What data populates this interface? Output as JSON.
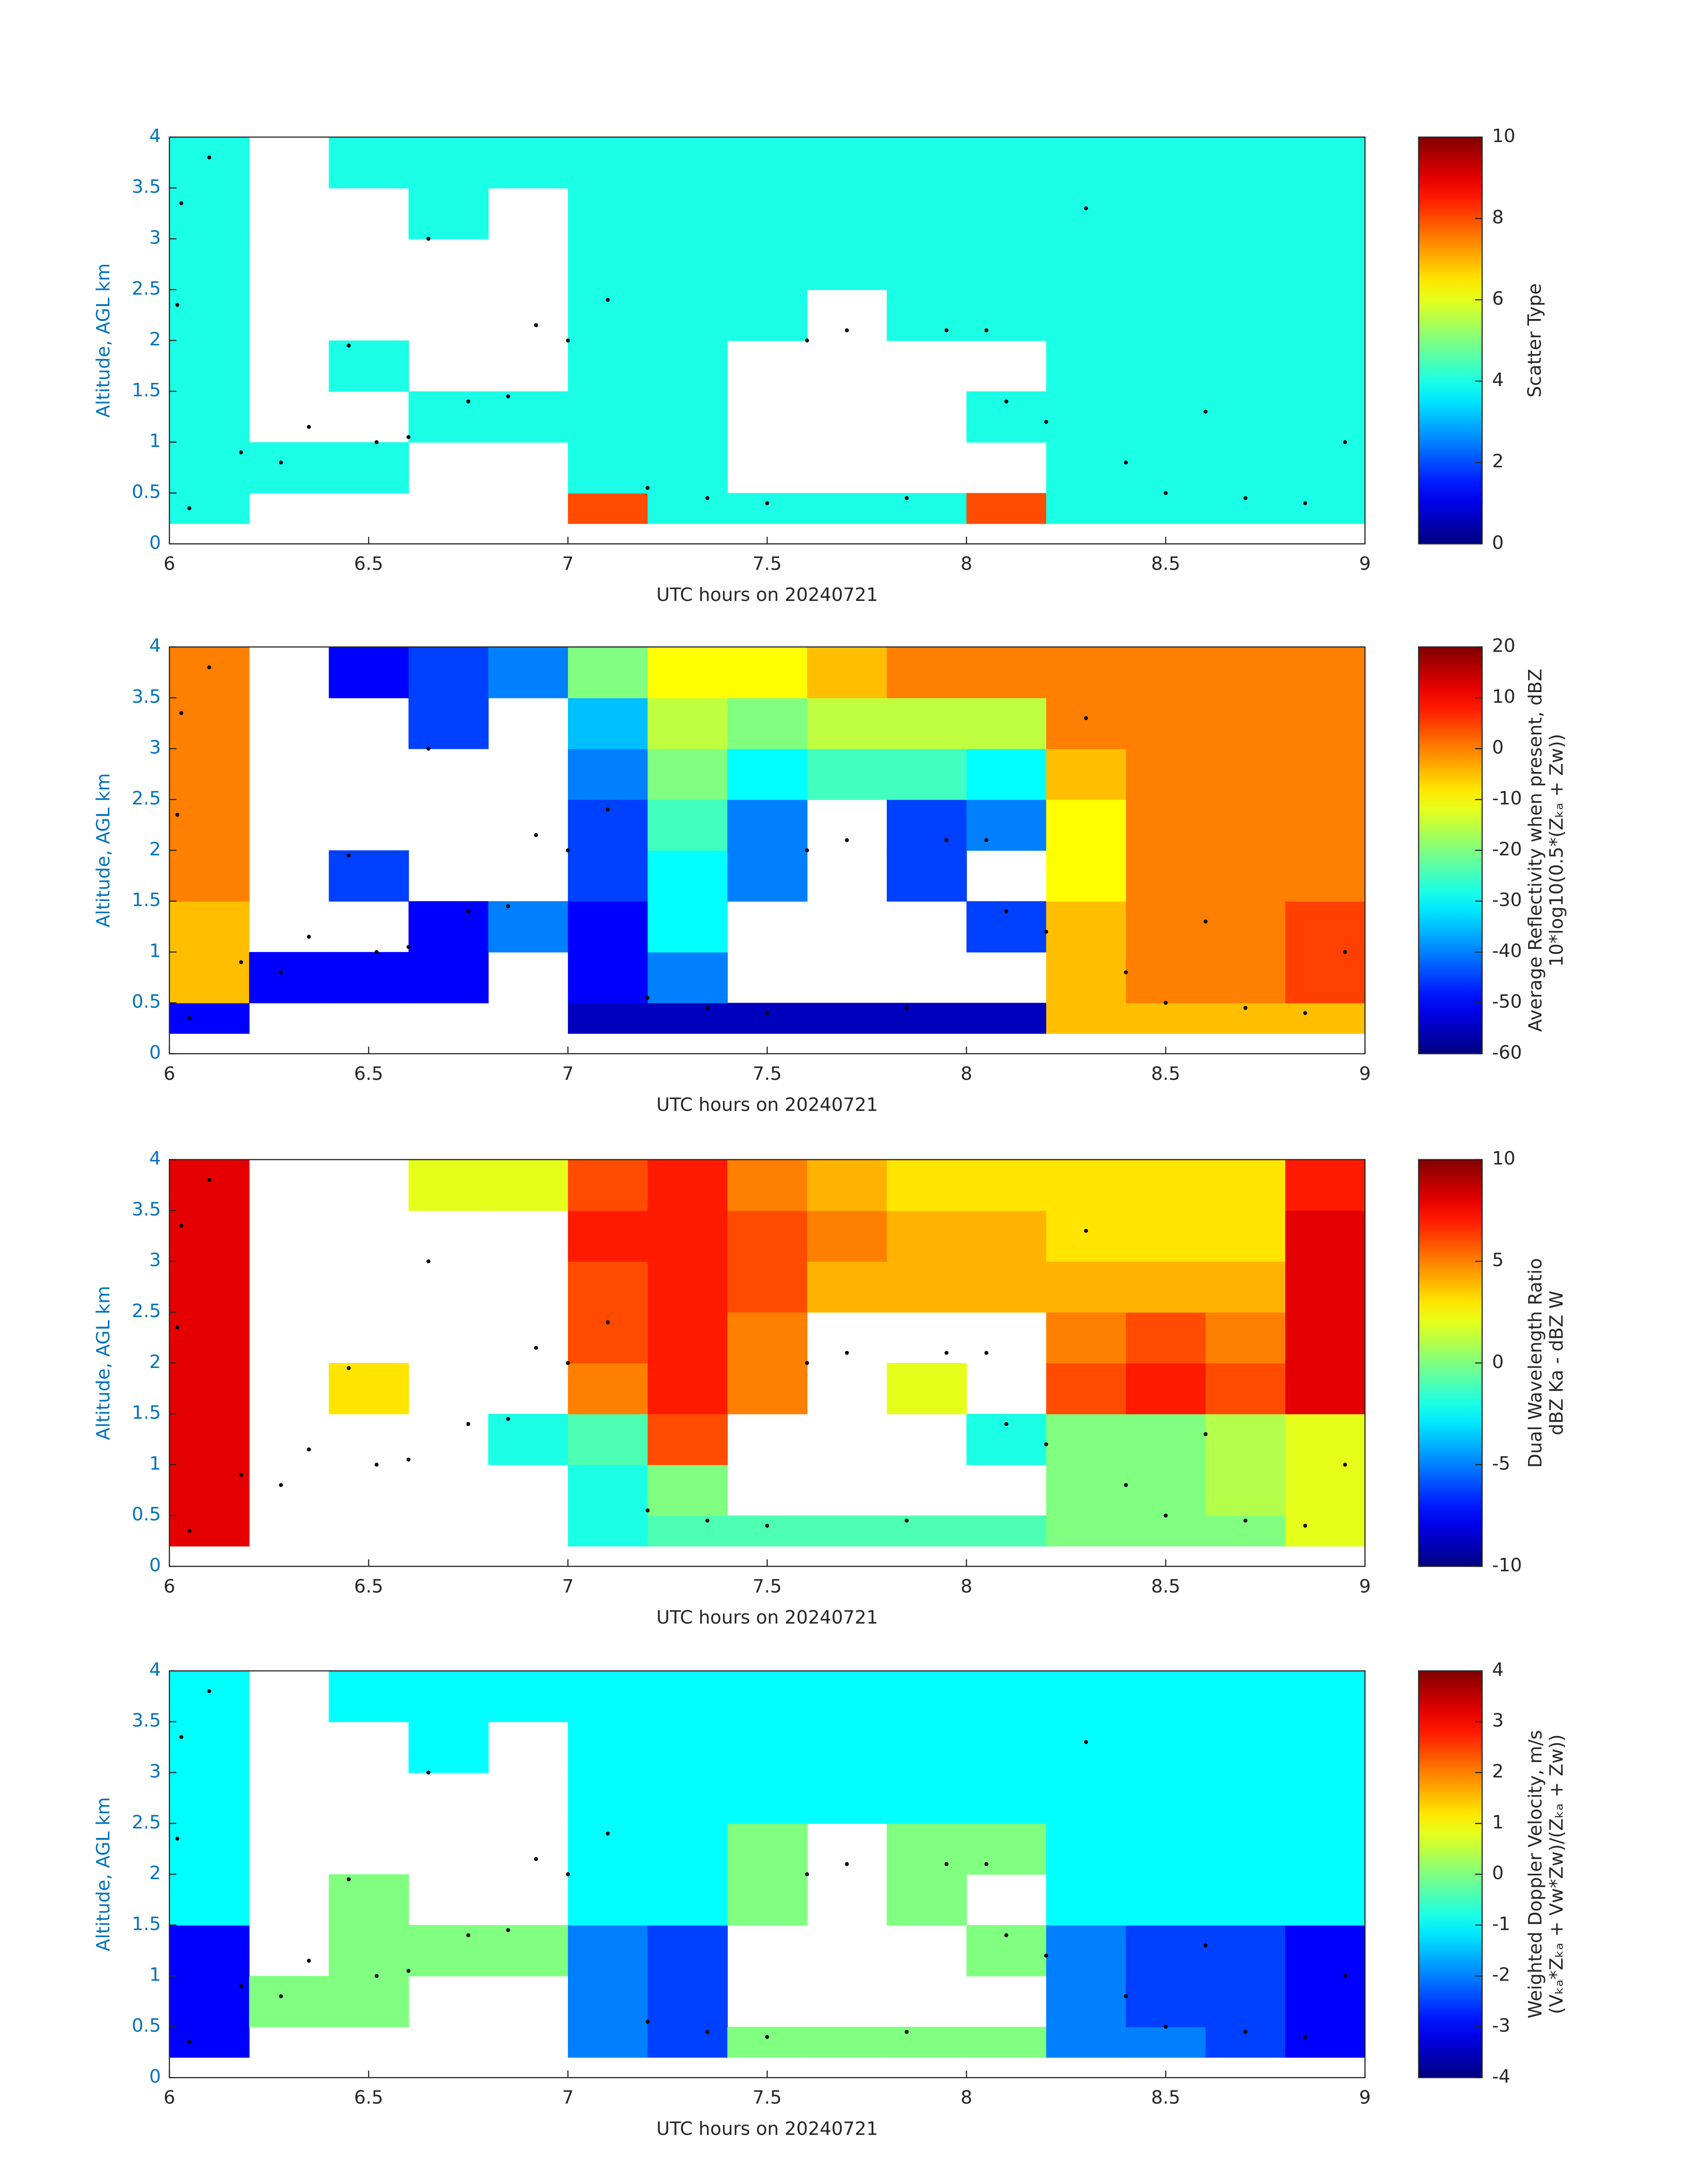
{
  "chart_data": [
    {
      "type": "heatmap",
      "colormap": "jet",
      "xlabel": "UTC hours on 20240721",
      "ylabel": "Altitude, AGL km",
      "xlim": [
        6,
        9
      ],
      "xticks": [
        6,
        6.5,
        7,
        7.5,
        8,
        8.5,
        9
      ],
      "ylim": [
        0,
        4
      ],
      "yticks": [
        0,
        0.5,
        1,
        1.5,
        2,
        2.5,
        3,
        3.5,
        4
      ],
      "clim": [
        0,
        10
      ],
      "cticks": [
        0,
        2,
        4,
        6,
        8,
        10
      ],
      "colorbar_label": [
        "Scatter Type"
      ],
      "x_edges": [
        6,
        6.2,
        6.4,
        6.6,
        6.8,
        7,
        7.2,
        7.4,
        7.6,
        7.8,
        8,
        8.2,
        8.4,
        8.6,
        8.8,
        9
      ],
      "y_edges": [
        0.2,
        0.5,
        1,
        1.5,
        2,
        2.5,
        3,
        3.5,
        4
      ],
      "z": [
        [
          4,
          null,
          null,
          null,
          null,
          8,
          4,
          4,
          4,
          4,
          8,
          4,
          4,
          4,
          4
        ],
        [
          4,
          4,
          4,
          null,
          null,
          4,
          4,
          null,
          null,
          null,
          null,
          4,
          4,
          4,
          4
        ],
        [
          4,
          null,
          null,
          4,
          4,
          4,
          4,
          null,
          null,
          null,
          4,
          4,
          4,
          4,
          4
        ],
        [
          4,
          null,
          4,
          null,
          null,
          4,
          4,
          null,
          null,
          null,
          null,
          4,
          4,
          4,
          4
        ],
        [
          4,
          null,
          null,
          null,
          null,
          4,
          4,
          4,
          null,
          4,
          4,
          4,
          4,
          4,
          4
        ],
        [
          4,
          null,
          null,
          null,
          null,
          4,
          4,
          4,
          4,
          4,
          4,
          4,
          4,
          4,
          4
        ],
        [
          4,
          null,
          null,
          4,
          null,
          4,
          4,
          4,
          4,
          4,
          4,
          4,
          4,
          4,
          4
        ],
        [
          4,
          null,
          4,
          4,
          4,
          4,
          4,
          4,
          4,
          4,
          4,
          4,
          4,
          4,
          4
        ]
      ],
      "dots": {
        "x": [
          6.02,
          6.03,
          6.1,
          6.05,
          6.18,
          6.28,
          6.35,
          6.45,
          6.52,
          6.6,
          6.65,
          6.75,
          6.85,
          6.92,
          7.0,
          7.1,
          7.2,
          7.35,
          7.5,
          7.6,
          7.7,
          7.85,
          7.95,
          8.05,
          8.1,
          8.2,
          8.3,
          8.4,
          8.5,
          8.6,
          8.7,
          8.85,
          8.95
        ],
        "values": [
          2.35,
          3.35,
          3.8,
          0.35,
          0.9,
          0.8,
          1.15,
          1.95,
          1.0,
          1.05,
          3.0,
          1.4,
          1.45,
          2.15,
          2.0,
          2.4,
          0.55,
          0.45,
          0.4,
          2.0,
          2.1,
          0.45,
          2.1,
          2.1,
          1.4,
          1.2,
          3.3,
          0.8,
          0.5,
          1.3,
          0.45,
          0.4,
          1.0
        ]
      }
    },
    {
      "type": "heatmap",
      "colormap": "jet",
      "xlabel": "UTC hours on 20240721",
      "ylabel": "Altitude, AGL km",
      "xlim": [
        6,
        9
      ],
      "xticks": [
        6,
        6.5,
        7,
        7.5,
        8,
        8.5,
        9
      ],
      "ylim": [
        0,
        4
      ],
      "yticks": [
        0,
        0.5,
        1,
        1.5,
        2,
        2.5,
        3,
        3.5,
        4
      ],
      "clim": [
        -60,
        20
      ],
      "cticks": [
        -60,
        -50,
        -40,
        -30,
        -20,
        -10,
        0,
        10,
        20
      ],
      "colorbar_label": [
        "Average Reflectivity when present, dBZ",
        "10*log10(0.5*(Zₖₐ + Zw))"
      ],
      "x_edges": [
        6,
        6.2,
        6.4,
        6.6,
        6.8,
        7,
        7.2,
        7.4,
        7.6,
        7.8,
        8,
        8.2,
        8.4,
        8.6,
        8.8,
        9
      ],
      "y_edges": [
        0.2,
        0.5,
        1,
        1.5,
        2,
        2.5,
        3,
        3.5,
        4
      ],
      "z": [
        [
          -50,
          null,
          null,
          null,
          null,
          -55,
          -55,
          -55,
          -55,
          -55,
          -55,
          -5,
          -5,
          -5,
          -5
        ],
        [
          -5,
          -50,
          -50,
          -50,
          null,
          -50,
          -40,
          null,
          null,
          null,
          null,
          -5,
          0,
          0,
          5
        ],
        [
          -5,
          null,
          null,
          -50,
          -40,
          -50,
          -30,
          null,
          null,
          null,
          -45,
          -5,
          0,
          0,
          5
        ],
        [
          0,
          null,
          -45,
          null,
          null,
          -45,
          -30,
          -40,
          null,
          -45,
          null,
          -10,
          0,
          0,
          0
        ],
        [
          0,
          null,
          null,
          null,
          null,
          -45,
          -25,
          -40,
          null,
          -45,
          -40,
          -10,
          0,
          0,
          0
        ],
        [
          0,
          null,
          null,
          null,
          null,
          -40,
          -20,
          -30,
          -25,
          -25,
          -30,
          -5,
          0,
          0,
          0
        ],
        [
          0,
          null,
          null,
          -45,
          null,
          -35,
          -15,
          -20,
          -15,
          -15,
          -15,
          0,
          0,
          0,
          0
        ],
        [
          0,
          null,
          -50,
          -45,
          -40,
          -20,
          -10,
          -10,
          -5,
          0,
          0,
          0,
          0,
          0,
          0
        ]
      ],
      "dots": {
        "x": [
          6.02,
          6.03,
          6.1,
          6.05,
          6.18,
          6.28,
          6.35,
          6.45,
          6.52,
          6.6,
          6.65,
          6.75,
          6.85,
          6.92,
          7.0,
          7.1,
          7.2,
          7.35,
          7.5,
          7.6,
          7.7,
          7.85,
          7.95,
          8.05,
          8.1,
          8.2,
          8.3,
          8.4,
          8.5,
          8.6,
          8.7,
          8.85,
          8.95
        ],
        "values": [
          2.35,
          3.35,
          3.8,
          0.35,
          0.9,
          0.8,
          1.15,
          1.95,
          1.0,
          1.05,
          3.0,
          1.4,
          1.45,
          2.15,
          2.0,
          2.4,
          0.55,
          0.45,
          0.4,
          2.0,
          2.1,
          0.45,
          2.1,
          2.1,
          1.4,
          1.2,
          3.3,
          0.8,
          0.5,
          1.3,
          0.45,
          0.4,
          1.0
        ]
      }
    },
    {
      "type": "heatmap",
      "colormap": "jet",
      "xlabel": "UTC hours on 20240721",
      "ylabel": "Altitude, AGL km",
      "xlim": [
        6,
        9
      ],
      "xticks": [
        6,
        6.5,
        7,
        7.5,
        8,
        8.5,
        9
      ],
      "ylim": [
        0,
        4
      ],
      "yticks": [
        0,
        0.5,
        1,
        1.5,
        2,
        2.5,
        3,
        3.5,
        4
      ],
      "clim": [
        -10,
        10
      ],
      "cticks": [
        -10,
        -5,
        0,
        5,
        10
      ],
      "colorbar_label": [
        "Dual Wavelength Ratio",
        "dBZ Ka - dBZ W"
      ],
      "x_edges": [
        6,
        6.2,
        6.4,
        6.6,
        6.8,
        7,
        7.2,
        7.4,
        7.6,
        7.8,
        8,
        8.2,
        8.4,
        8.6,
        8.8,
        9
      ],
      "y_edges": [
        0.2,
        0.5,
        1,
        1.5,
        2,
        2.5,
        3,
        3.5,
        4
      ],
      "z": [
        [
          8,
          null,
          null,
          null,
          null,
          -2,
          -1,
          -1,
          -1,
          -1,
          -1,
          0,
          0,
          0,
          2
        ],
        [
          8,
          null,
          null,
          null,
          null,
          -2,
          0,
          null,
          null,
          null,
          null,
          0,
          0,
          1,
          2
        ],
        [
          8,
          null,
          null,
          null,
          -2,
          -1,
          6,
          null,
          null,
          null,
          -2,
          0,
          0,
          1,
          2
        ],
        [
          8,
          null,
          3,
          null,
          null,
          5,
          7,
          5,
          null,
          2,
          null,
          6,
          7,
          6,
          8
        ],
        [
          8,
          null,
          null,
          null,
          null,
          6,
          7,
          5,
          null,
          null,
          null,
          5,
          6,
          5,
          8
        ],
        [
          8,
          null,
          null,
          null,
          null,
          6,
          7,
          6,
          4,
          4,
          4,
          4,
          4,
          4,
          8
        ],
        [
          8,
          null,
          null,
          null,
          null,
          7,
          7,
          6,
          5,
          4,
          4,
          3,
          3,
          3,
          8
        ],
        [
          8,
          null,
          null,
          2,
          2,
          6,
          7,
          5,
          4,
          3,
          3,
          3,
          3,
          3,
          7
        ]
      ],
      "dots": {
        "x": [
          6.02,
          6.03,
          6.1,
          6.05,
          6.18,
          6.28,
          6.35,
          6.45,
          6.52,
          6.6,
          6.65,
          6.75,
          6.85,
          6.92,
          7.0,
          7.1,
          7.2,
          7.35,
          7.5,
          7.6,
          7.7,
          7.85,
          7.95,
          8.05,
          8.1,
          8.2,
          8.3,
          8.4,
          8.5,
          8.6,
          8.7,
          8.85,
          8.95
        ],
        "values": [
          2.35,
          3.35,
          3.8,
          0.35,
          0.9,
          0.8,
          1.15,
          1.95,
          1.0,
          1.05,
          3.0,
          1.4,
          1.45,
          2.15,
          2.0,
          2.4,
          0.55,
          0.45,
          0.4,
          2.0,
          2.1,
          0.45,
          2.1,
          2.1,
          1.4,
          1.2,
          3.3,
          0.8,
          0.5,
          1.3,
          0.45,
          0.4,
          1.0
        ]
      }
    },
    {
      "type": "heatmap",
      "colormap": "jet",
      "xlabel": "UTC hours on 20240721",
      "ylabel": "Altitude, AGL km",
      "xlim": [
        6,
        9
      ],
      "xticks": [
        6,
        6.5,
        7,
        7.5,
        8,
        8.5,
        9
      ],
      "ylim": [
        0,
        4
      ],
      "yticks": [
        0,
        0.5,
        1,
        1.5,
        2,
        2.5,
        3,
        3.5,
        4
      ],
      "clim": [
        -4,
        4
      ],
      "cticks": [
        -4,
        -3,
        -2,
        -1,
        0,
        1,
        2,
        3,
        4
      ],
      "colorbar_label": [
        "Weighted Doppler Velocity, m/s",
        "(Vₖₐ*Zₖₐ + Vw*Zw)/(Zₖₐ + Zw))"
      ],
      "x_edges": [
        6,
        6.2,
        6.4,
        6.6,
        6.8,
        7,
        7.2,
        7.4,
        7.6,
        7.8,
        8,
        8.2,
        8.4,
        8.6,
        8.8,
        9
      ],
      "y_edges": [
        0.2,
        0.5,
        1,
        1.5,
        2,
        2.5,
        3,
        3.5,
        4
      ],
      "z": [
        [
          -3,
          null,
          null,
          null,
          null,
          -2,
          -2.5,
          0,
          0,
          0,
          0,
          -2,
          -2,
          -2.5,
          -3
        ],
        [
          -3,
          0,
          0,
          null,
          null,
          -2,
          -2.5,
          null,
          null,
          null,
          null,
          -2,
          -2.5,
          -2.5,
          -3
        ],
        [
          -3,
          null,
          0,
          0,
          0,
          -2,
          -2.5,
          null,
          null,
          null,
          0,
          -2,
          -2.5,
          -2.5,
          -3
        ],
        [
          -1,
          null,
          0,
          null,
          null,
          -1,
          -1,
          0,
          null,
          0,
          null,
          -1,
          -1,
          -1,
          -1
        ],
        [
          -1,
          null,
          null,
          null,
          null,
          -1,
          -1,
          0,
          null,
          0,
          0,
          -1,
          -1,
          -1,
          -1
        ],
        [
          -1,
          null,
          null,
          null,
          null,
          -1,
          -1,
          -1,
          -1,
          -1,
          -1,
          -1,
          -1,
          -1,
          -1
        ],
        [
          -1,
          null,
          null,
          -1,
          null,
          -1,
          -1,
          -1,
          -1,
          -1,
          -1,
          -1,
          -1,
          -1,
          -1
        ],
        [
          -1,
          null,
          -1,
          -1,
          -1,
          -1,
          -1,
          -1,
          -1,
          -1,
          -1,
          -1,
          -1,
          -1,
          -1
        ]
      ],
      "dots": {
        "x": [
          6.02,
          6.03,
          6.1,
          6.05,
          6.18,
          6.28,
          6.35,
          6.45,
          6.52,
          6.6,
          6.65,
          6.75,
          6.85,
          6.92,
          7.0,
          7.1,
          7.2,
          7.35,
          7.5,
          7.6,
          7.7,
          7.85,
          7.95,
          8.05,
          8.1,
          8.2,
          8.3,
          8.4,
          8.5,
          8.6,
          8.7,
          8.85,
          8.95
        ],
        "values": [
          2.35,
          3.35,
          3.8,
          0.35,
          0.9,
          0.8,
          1.15,
          1.95,
          1.0,
          1.05,
          3.0,
          1.4,
          1.45,
          2.15,
          2.0,
          2.4,
          0.55,
          0.45,
          0.4,
          2.0,
          2.1,
          0.45,
          2.1,
          2.1,
          1.4,
          1.2,
          3.3,
          0.8,
          0.5,
          1.3,
          0.45,
          0.4,
          1.0
        ]
      }
    }
  ]
}
